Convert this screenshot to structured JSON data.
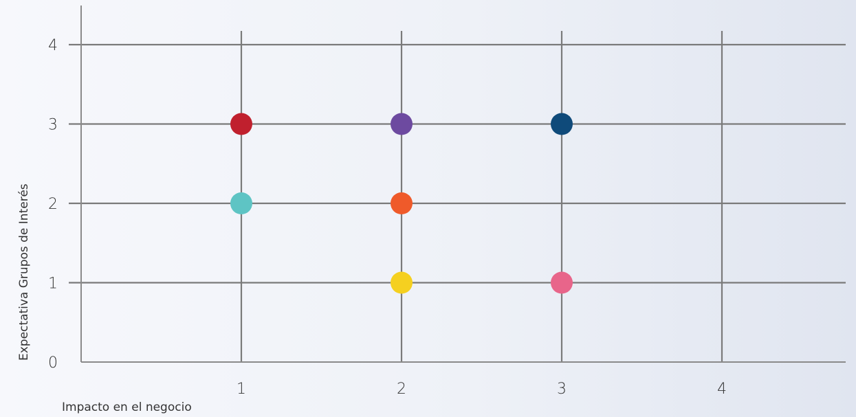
{
  "chart_data": {
    "type": "scatter",
    "xlabel": "Impacto en el negocio",
    "ylabel": "Expectativa Grupos de Interés",
    "xlim": [
      0,
      4.8
    ],
    "ylim": [
      0,
      4
    ],
    "x_ticks": [
      "1",
      "2",
      "3",
      "4"
    ],
    "y_ticks": [
      "0",
      "1",
      "2",
      "3",
      "4"
    ],
    "grid": true,
    "points": [
      {
        "x": 1,
        "y": 3,
        "color": "#c0202e"
      },
      {
        "x": 1,
        "y": 2,
        "color": "#5ec4c4"
      },
      {
        "x": 2,
        "y": 3,
        "color": "#6d4aa0"
      },
      {
        "x": 2,
        "y": 2,
        "color": "#ef5a2a"
      },
      {
        "x": 2,
        "y": 1,
        "color": "#f5d020"
      },
      {
        "x": 3,
        "y": 3,
        "color": "#0f4a7a"
      },
      {
        "x": 3,
        "y": 1,
        "color": "#e8658a"
      }
    ]
  },
  "colors": {
    "grid": "#7a7a7a",
    "axis": "#8a8a8a",
    "text": "#333333"
  }
}
